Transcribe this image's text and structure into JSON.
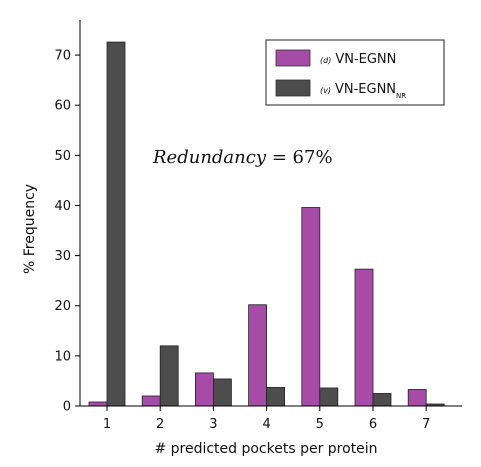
{
  "chart_data": {
    "type": "bar",
    "xlabel": "# predicted pockets per protein",
    "ylabel": "% Frequency",
    "ylim": [
      0,
      77
    ],
    "yticks": [
      0,
      10,
      20,
      30,
      40,
      50,
      60,
      70
    ],
    "categories": [
      "1",
      "2",
      "3",
      "4",
      "5",
      "6",
      "7"
    ],
    "series": [
      {
        "name": "VN-EGNN",
        "tag": "(d)",
        "subscript": "",
        "color": "#a64ca6",
        "values": [
          0.8,
          2.0,
          6.6,
          20.2,
          39.6,
          27.3,
          3.3
        ]
      },
      {
        "name": "VN-EGNN",
        "tag": "(v)",
        "subscript": "NR",
        "color": "#4d4d4d",
        "values": [
          72.6,
          12.0,
          5.4,
          3.7,
          3.6,
          2.5,
          0.4
        ]
      }
    ],
    "annotation": {
      "label": "Redundancy",
      "relation": " = ",
      "value": "67%"
    },
    "grid": false,
    "legend_position": "top-right"
  }
}
